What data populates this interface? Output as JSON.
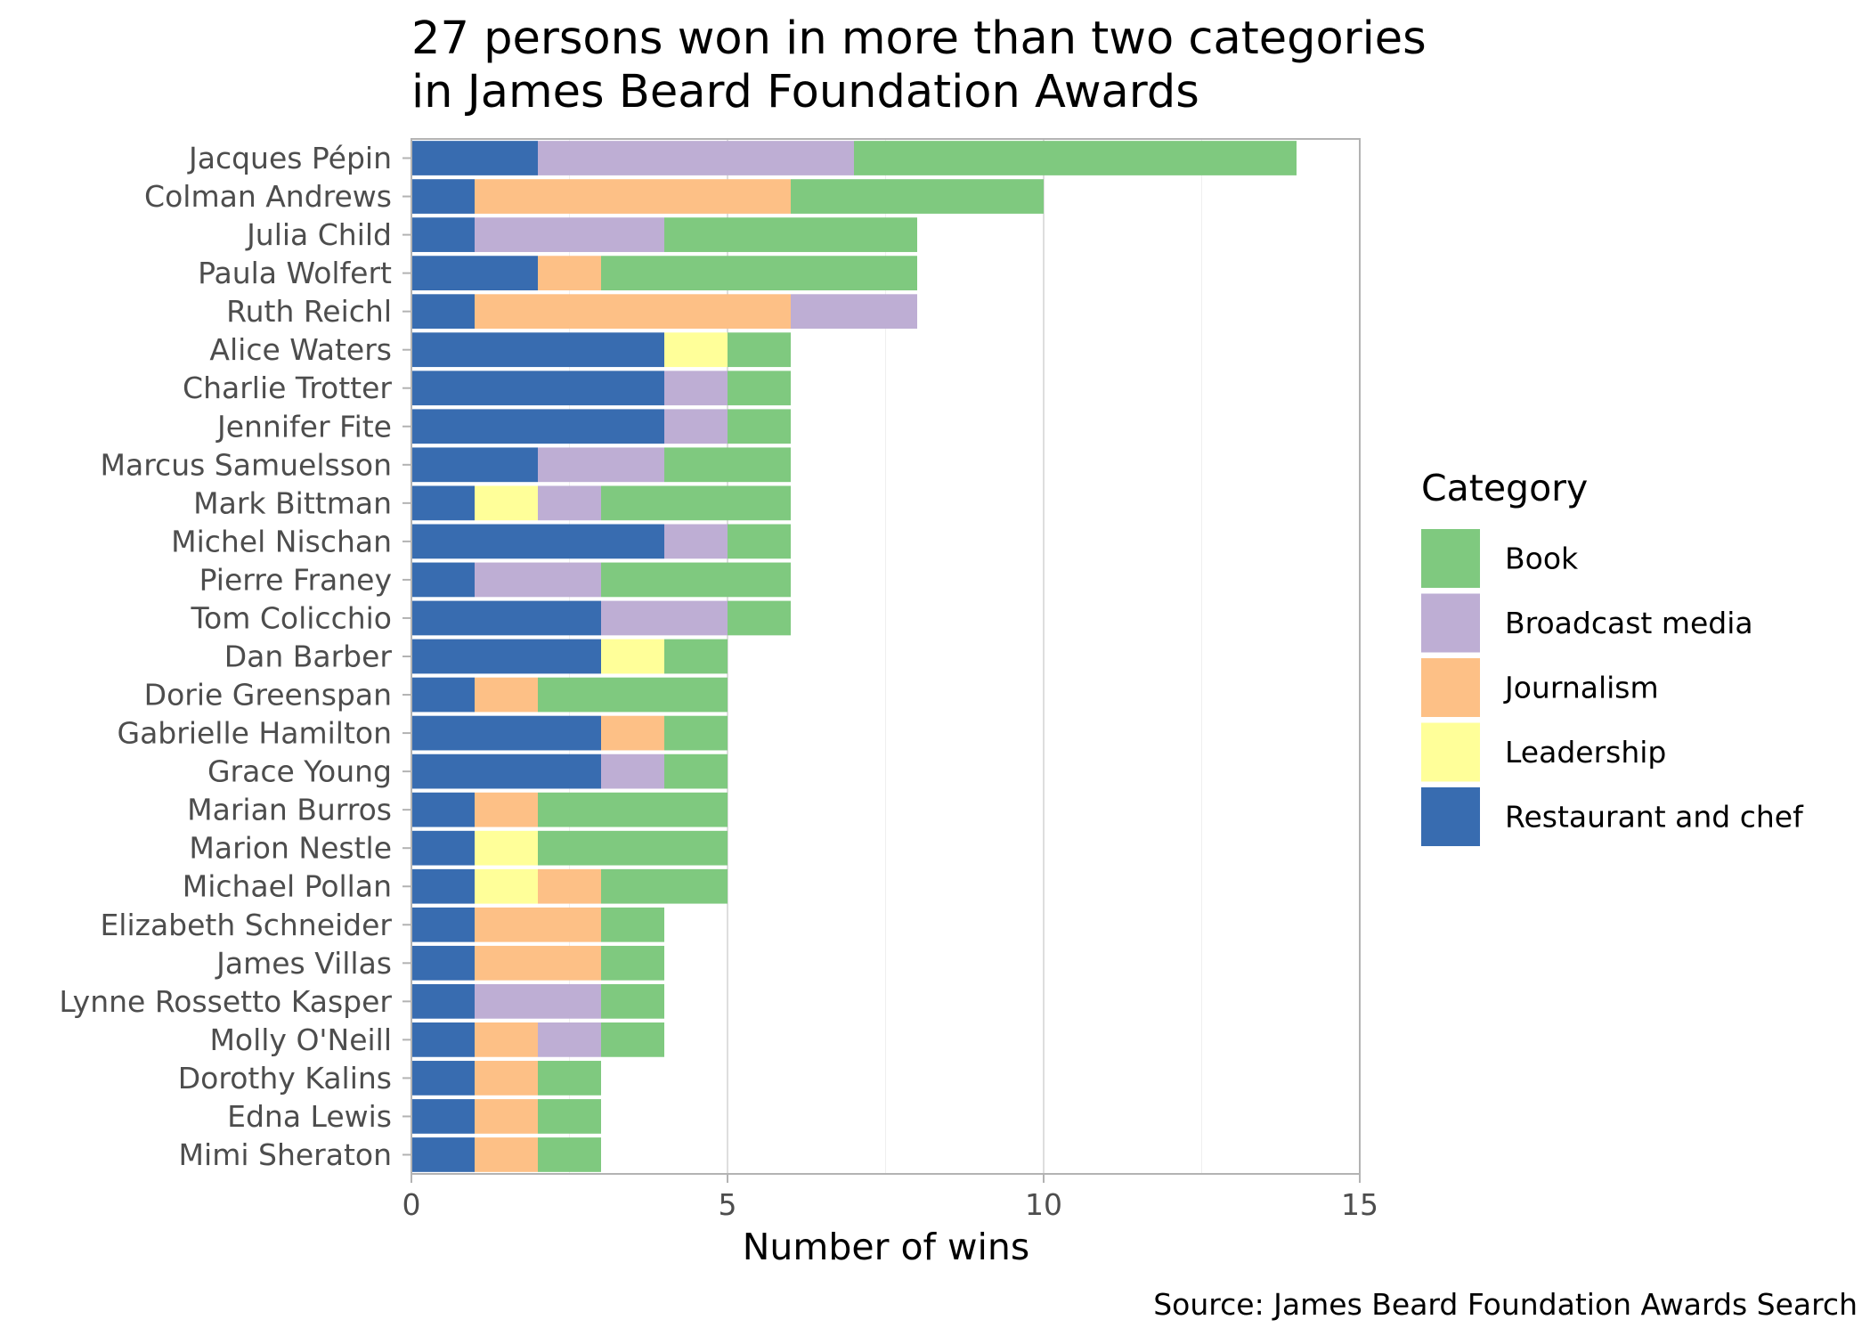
{
  "chart_data": {
    "type": "bar",
    "orientation": "horizontal",
    "stacked": true,
    "title": "27 persons won in more than two categories",
    "title_line2": "in James Beard Foundation Awards",
    "xlabel": "Number of wins",
    "ylabel": "",
    "xlim": [
      0,
      15
    ],
    "xticks": [
      "0",
      "5",
      "10",
      "15"
    ],
    "caption": "Source: James Beard Foundation Awards Search",
    "grid": true,
    "legend": {
      "title": "Category",
      "position": "right",
      "entries": [
        "Book",
        "Broadcast media",
        "Journalism",
        "Leadership",
        "Restaurant and chef"
      ]
    },
    "colors": {
      "Book": "#7fc97f",
      "Broadcast media": "#beaed4",
      "Journalism": "#fdc086",
      "Leadership": "#ffff99",
      "Restaurant and chef": "#386cb0"
    },
    "stack_order": [
      "Restaurant and chef",
      "Leadership",
      "Journalism",
      "Broadcast media",
      "Book"
    ],
    "categories": [
      "Jacques Pépin",
      "Colman Andrews",
      "Julia Child",
      "Paula Wolfert",
      "Ruth Reichl",
      "Alice Waters",
      "Charlie Trotter",
      "Jennifer Fite",
      "Marcus Samuelsson",
      "Mark Bittman",
      "Michel Nischan",
      "Pierre Franey",
      "Tom Colicchio",
      "Dan Barber",
      "Dorie Greenspan",
      "Gabrielle Hamilton",
      "Grace Young",
      "Marian Burros",
      "Marion Nestle",
      "Michael Pollan",
      "Elizabeth Schneider",
      "James Villas",
      "Lynne Rossetto Kasper",
      "Molly O'Neill",
      "Dorothy Kalins",
      "Edna Lewis",
      "Mimi Sheraton"
    ],
    "series": [
      {
        "name": "Restaurant and chef",
        "values": [
          2,
          1,
          1,
          2,
          1,
          4,
          4,
          4,
          2,
          1,
          4,
          1,
          3,
          3,
          1,
          3,
          3,
          1,
          1,
          1,
          1,
          1,
          1,
          1,
          1,
          1,
          1
        ]
      },
      {
        "name": "Leadership",
        "values": [
          0,
          0,
          0,
          0,
          0,
          1,
          0,
          0,
          0,
          1,
          0,
          0,
          0,
          1,
          0,
          0,
          0,
          0,
          1,
          1,
          0,
          0,
          0,
          0,
          0,
          0,
          0
        ]
      },
      {
        "name": "Journalism",
        "values": [
          0,
          5,
          0,
          1,
          5,
          0,
          0,
          0,
          0,
          0,
          0,
          0,
          0,
          0,
          1,
          1,
          0,
          1,
          0,
          1,
          2,
          2,
          0,
          1,
          1,
          1,
          1
        ]
      },
      {
        "name": "Broadcast media",
        "values": [
          5,
          0,
          3,
          0,
          2,
          0,
          1,
          1,
          2,
          1,
          1,
          2,
          2,
          0,
          0,
          0,
          1,
          0,
          0,
          0,
          0,
          0,
          2,
          1,
          0,
          0,
          0
        ]
      },
      {
        "name": "Book",
        "values": [
          7,
          4,
          4,
          5,
          0,
          1,
          1,
          1,
          2,
          3,
          1,
          3,
          1,
          1,
          3,
          1,
          1,
          3,
          3,
          2,
          1,
          1,
          1,
          1,
          1,
          1,
          1
        ]
      }
    ]
  }
}
